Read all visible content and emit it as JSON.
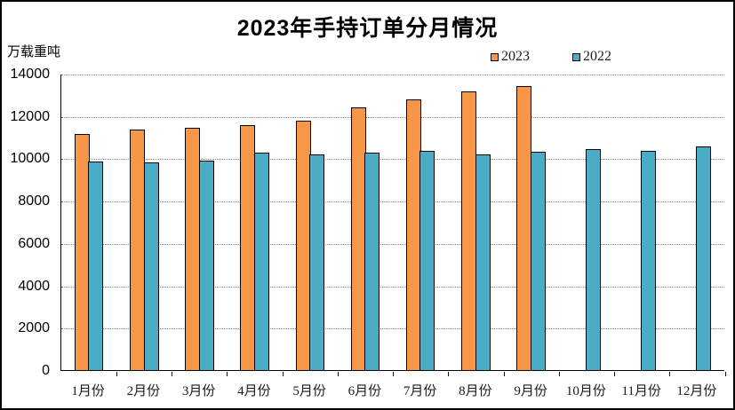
{
  "frame": {
    "background": "#ffffff",
    "border_color": "#000000"
  },
  "chart_data": {
    "type": "bar",
    "title": "2023年手持订单分月情况",
    "unit_label": "万载重吨",
    "xlabel": "",
    "ylabel": "万载重吨",
    "categories": [
      "1月份",
      "2月份",
      "3月份",
      "4月份",
      "5月份",
      "6月份",
      "7月份",
      "8月份",
      "9月份",
      "10月份",
      "11月份",
      "12月份"
    ],
    "series": [
      {
        "name": "2023",
        "color": "#F79646",
        "values": [
          11150,
          11350,
          11450,
          11550,
          11800,
          12400,
          12800,
          13150,
          13400,
          null,
          null,
          null
        ]
      },
      {
        "name": "2022",
        "color": "#4BACC6",
        "values": [
          9850,
          9800,
          9900,
          10250,
          10200,
          10250,
          10350,
          10200,
          10300,
          10450,
          10350,
          10550
        ]
      }
    ],
    "ylim": [
      0,
      14000
    ],
    "yticks": [
      0,
      2000,
      4000,
      6000,
      8000,
      10000,
      12000,
      14000
    ],
    "grid": "horizontal-dotted",
    "gridline_color": "#7f7f7f",
    "bar_border_color": "#000000",
    "legend_position": "top-right"
  }
}
